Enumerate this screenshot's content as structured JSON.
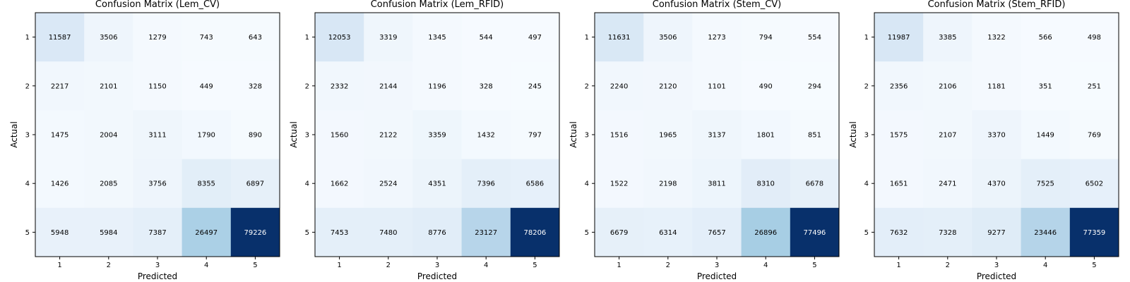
{
  "chart_data": [
    {
      "type": "heatmap",
      "title": "Confusion Matrix (Lem_CV)",
      "xlabel": "Predicted",
      "ylabel": "Actual",
      "x_categories": [
        "1",
        "2",
        "3",
        "4",
        "5"
      ],
      "y_categories": [
        "1",
        "2",
        "3",
        "4",
        "5"
      ],
      "colormap": "Blues",
      "values": [
        [
          11587,
          3506,
          1279,
          743,
          643
        ],
        [
          2217,
          2101,
          1150,
          449,
          328
        ],
        [
          1475,
          2004,
          3111,
          1790,
          890
        ],
        [
          1426,
          2085,
          3756,
          8355,
          6897
        ],
        [
          5948,
          5984,
          7387,
          26497,
          79226
        ]
      ]
    },
    {
      "type": "heatmap",
      "title": "Confusion Matrix (Lem_RFID)",
      "xlabel": "Predicted",
      "ylabel": "Actual",
      "x_categories": [
        "1",
        "2",
        "3",
        "4",
        "5"
      ],
      "y_categories": [
        "1",
        "2",
        "3",
        "4",
        "5"
      ],
      "colormap": "Blues",
      "values": [
        [
          12053,
          3319,
          1345,
          544,
          497
        ],
        [
          2332,
          2144,
          1196,
          328,
          245
        ],
        [
          1560,
          2122,
          3359,
          1432,
          797
        ],
        [
          1662,
          2524,
          4351,
          7396,
          6586
        ],
        [
          7453,
          7480,
          8776,
          23127,
          78206
        ]
      ]
    },
    {
      "type": "heatmap",
      "title": "Confusion Matrix (Stem_CV)",
      "xlabel": "Predicted",
      "ylabel": "Actual",
      "x_categories": [
        "1",
        "2",
        "3",
        "4",
        "5"
      ],
      "y_categories": [
        "1",
        "2",
        "3",
        "4",
        "5"
      ],
      "colormap": "Blues",
      "values": [
        [
          11631,
          3506,
          1273,
          794,
          554
        ],
        [
          2240,
          2120,
          1101,
          490,
          294
        ],
        [
          1516,
          1965,
          3137,
          1801,
          851
        ],
        [
          1522,
          2198,
          3811,
          8310,
          6678
        ],
        [
          6679,
          6314,
          7657,
          26896,
          77496
        ]
      ]
    },
    {
      "type": "heatmap",
      "title": "Confusion Matrix (Stem_RFID)",
      "xlabel": "Predicted",
      "ylabel": "Actual",
      "x_categories": [
        "1",
        "2",
        "3",
        "4",
        "5"
      ],
      "y_categories": [
        "1",
        "2",
        "3",
        "4",
        "5"
      ],
      "colormap": "Blues",
      "values": [
        [
          11987,
          3385,
          1322,
          566,
          498
        ],
        [
          2356,
          2106,
          1181,
          351,
          251
        ],
        [
          1575,
          2107,
          3370,
          1449,
          769
        ],
        [
          1651,
          2471,
          4370,
          7525,
          6502
        ],
        [
          7632,
          7328,
          9277,
          23446,
          77359
        ]
      ]
    }
  ]
}
